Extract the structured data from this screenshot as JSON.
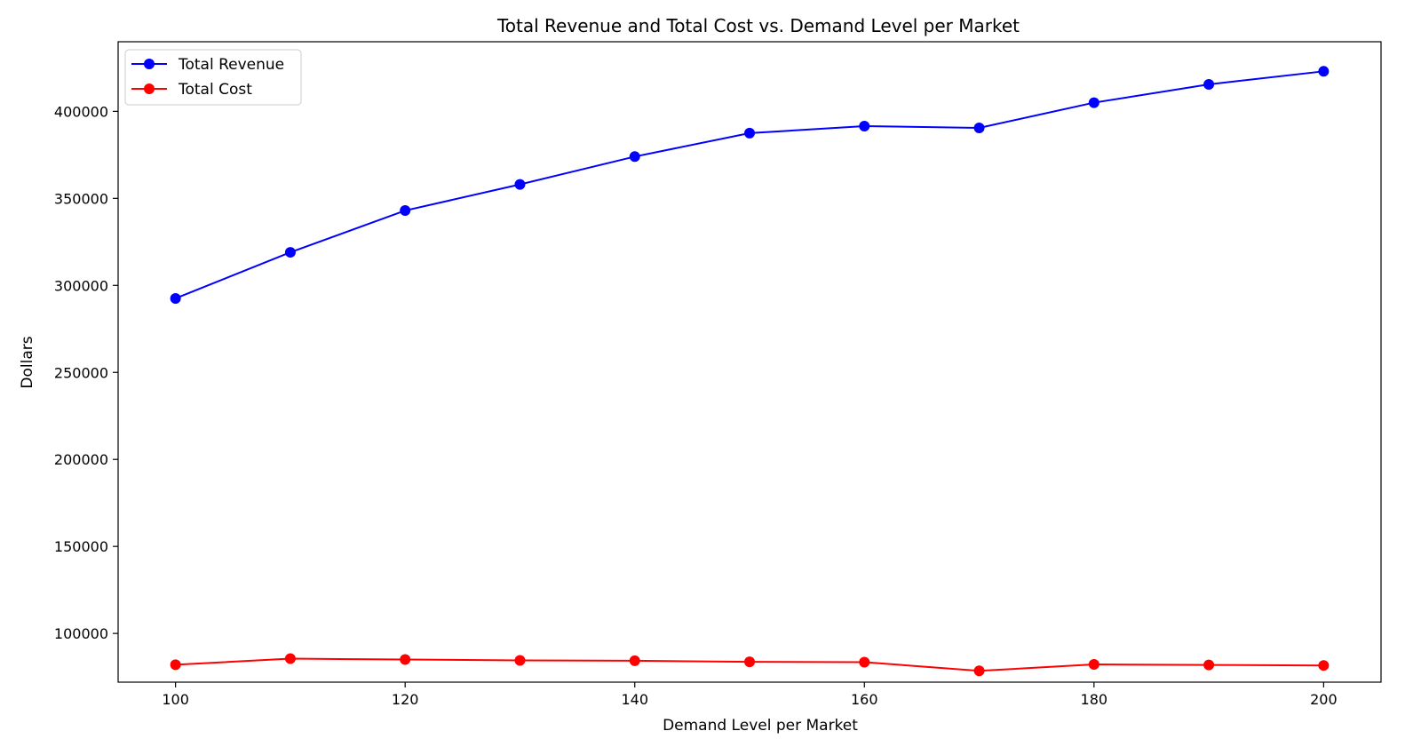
{
  "chart_data": {
    "type": "line",
    "title": "Total Revenue and Total Cost vs. Demand Level per Market",
    "xlabel": "Demand Level per Market",
    "ylabel": "Dollars",
    "x": [
      100,
      110,
      120,
      130,
      140,
      150,
      160,
      170,
      180,
      190,
      200
    ],
    "xlim": [
      95,
      205
    ],
    "ylim": [
      72000,
      440000
    ],
    "xticks": [
      100,
      120,
      140,
      160,
      180,
      200
    ],
    "yticks": [
      100000,
      150000,
      200000,
      250000,
      300000,
      350000,
      400000
    ],
    "grid": false,
    "legend_position": "top-left",
    "series": [
      {
        "name": "Total Revenue",
        "color": "#0000ff",
        "values": [
          292500,
          319000,
          343000,
          358000,
          374000,
          387500,
          391500,
          390500,
          405000,
          415500,
          423000
        ]
      },
      {
        "name": "Total Cost",
        "color": "#ff0000",
        "values": [
          82000,
          85500,
          85000,
          84500,
          84300,
          83700,
          83500,
          78500,
          82200,
          81900,
          81600
        ]
      }
    ]
  }
}
